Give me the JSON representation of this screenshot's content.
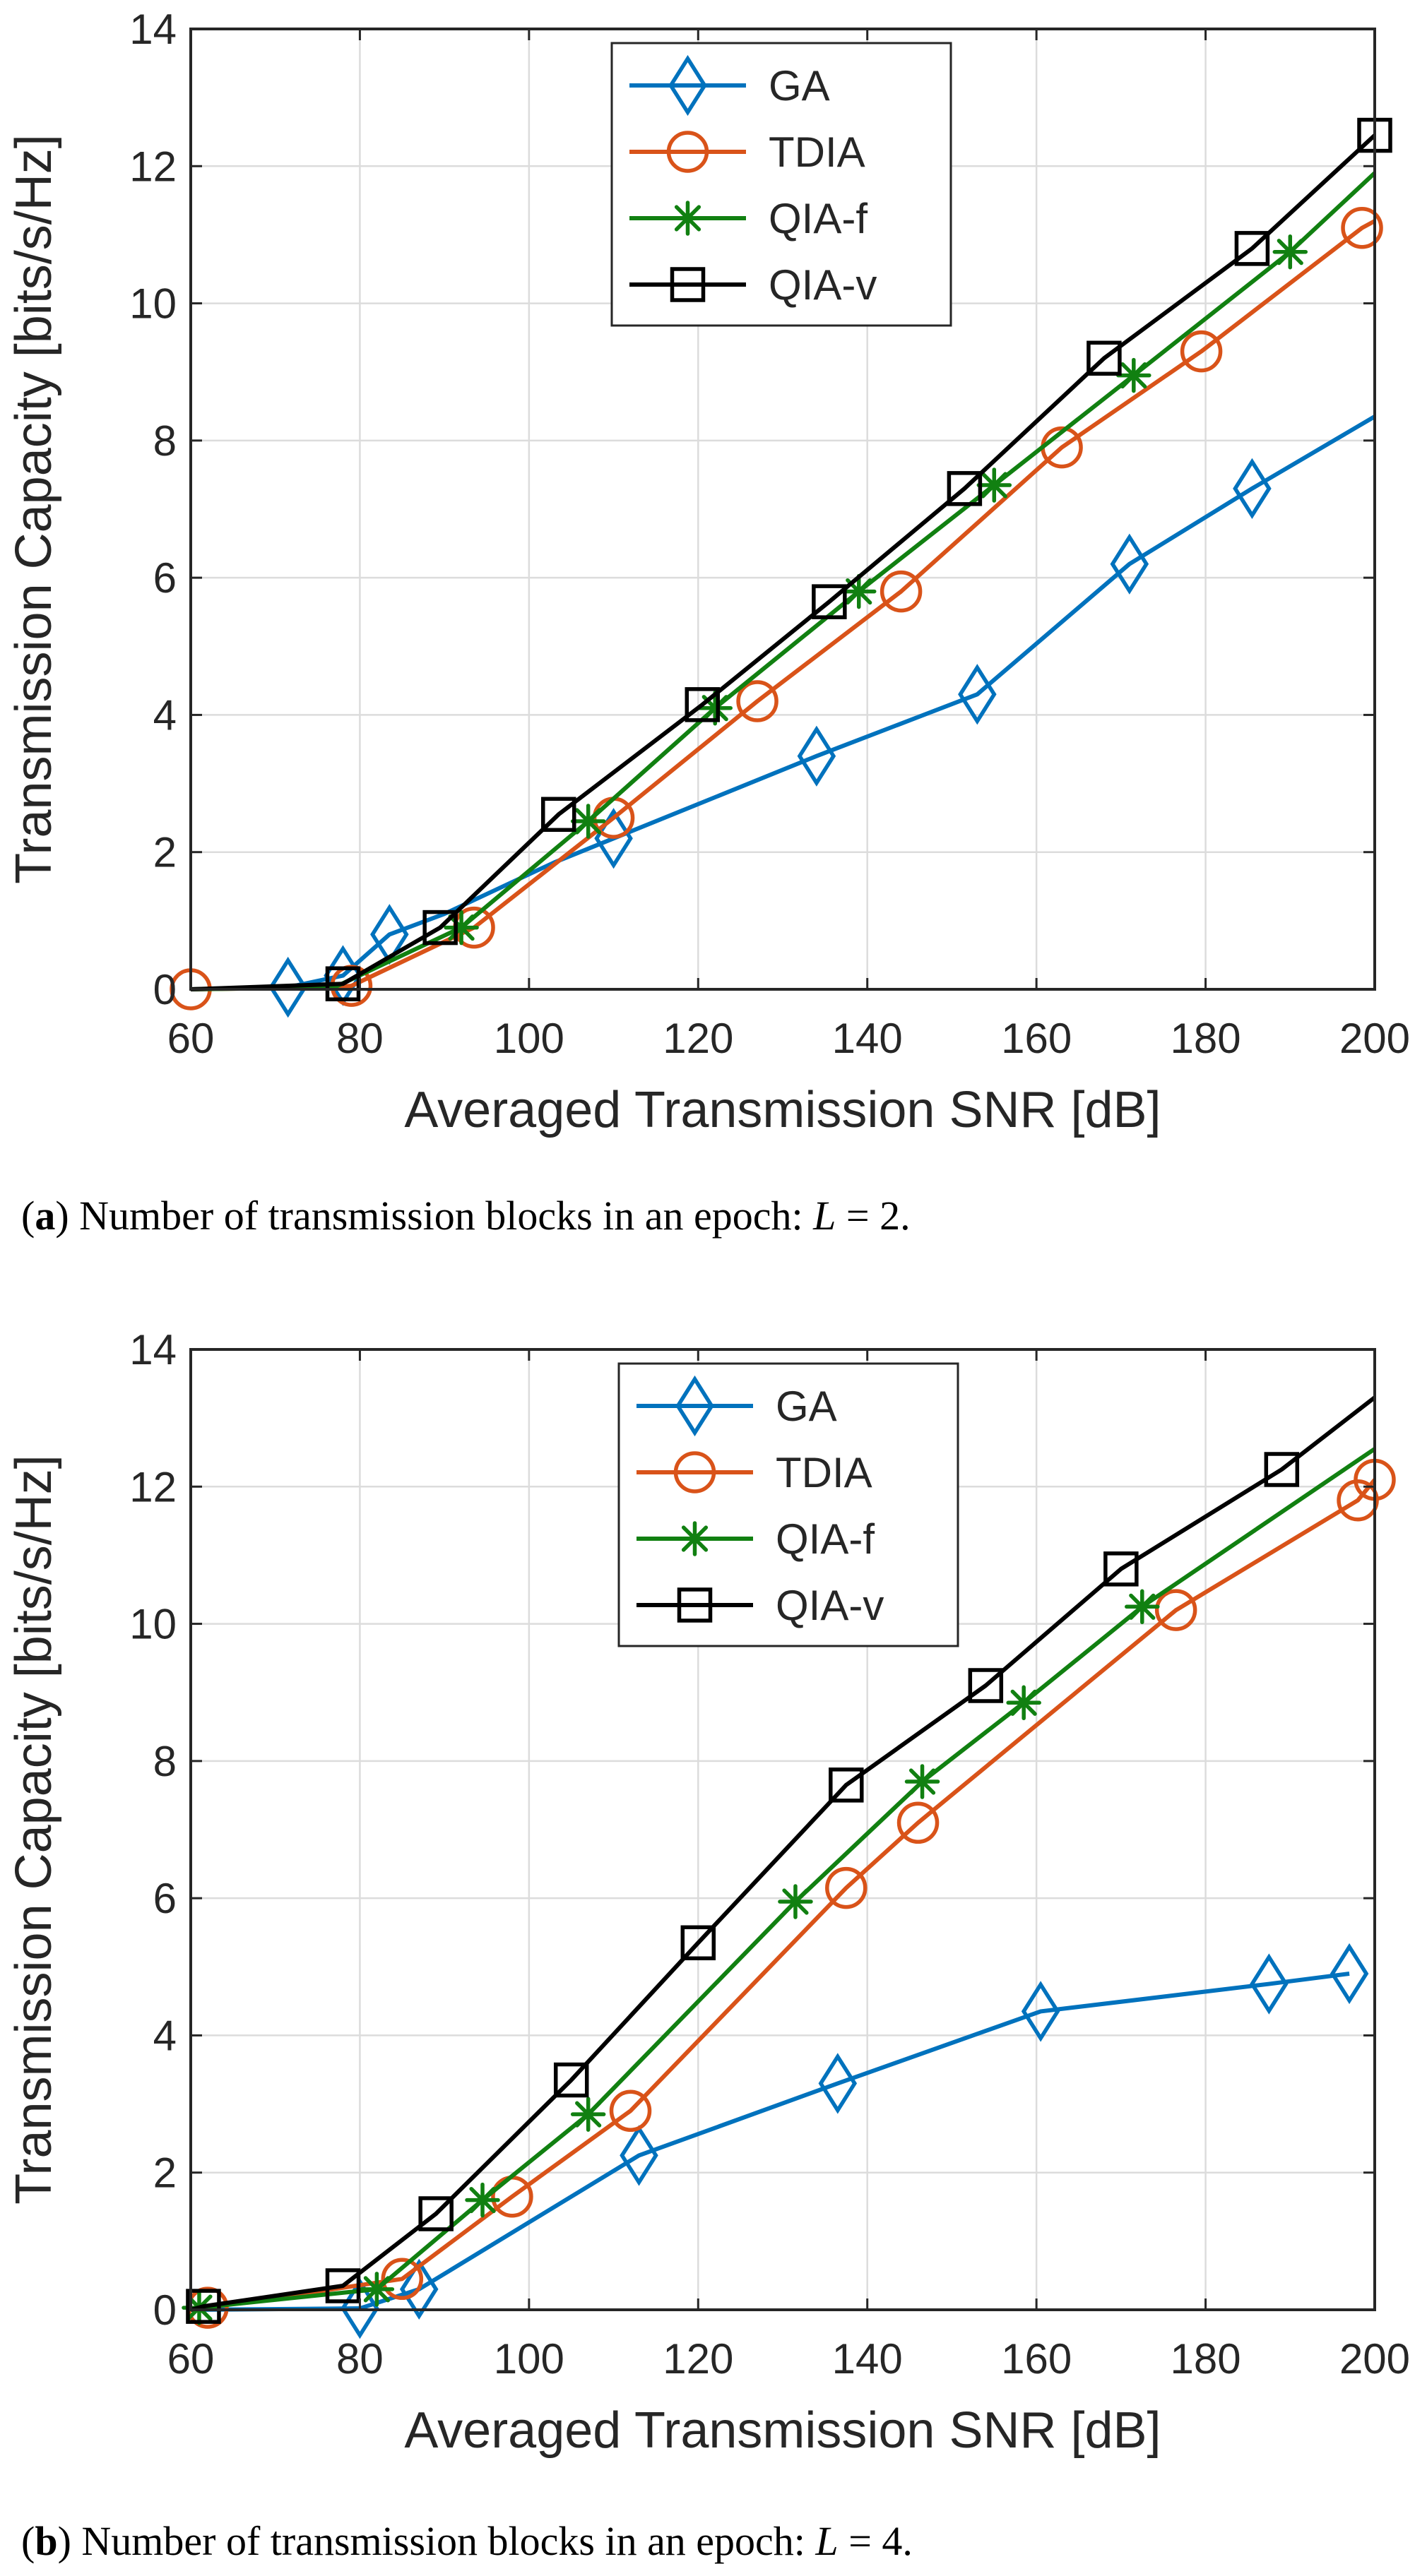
{
  "chart_data": [
    {
      "type": "line",
      "caption": {
        "label": "a",
        "text": "Number of transmission blocks in an epoch: ",
        "symbol": "L",
        "equals": " = ",
        "value": "2."
      },
      "xlabel": "Averaged Transmission SNR [dB]",
      "ylabel": "Transmission Capacity [bits/s/Hz]",
      "xlim": [
        60,
        200
      ],
      "ylim": [
        0,
        14
      ],
      "xticks": [
        60,
        80,
        100,
        120,
        140,
        160,
        180,
        200
      ],
      "yticks": [
        0,
        2,
        4,
        6,
        8,
        10,
        12,
        14
      ],
      "grid": true,
      "legend_position": "top-center",
      "series": [
        {
          "name": "GA",
          "color": "#0072BD",
          "marker": "diamond",
          "line_x": [
            60,
            71.5,
            78,
            83.5,
            90,
            103,
            110,
            134,
            153,
            171,
            185.5,
            200
          ],
          "line_y": [
            0,
            0.03,
            0.2,
            0.8,
            1.1,
            1.85,
            2.2,
            3.4,
            4.3,
            6.2,
            7.3,
            8.35
          ],
          "marker_x": [
            71.5,
            78,
            83.5,
            110,
            134,
            153,
            171,
            185.5
          ],
          "marker_y": [
            0.03,
            0.2,
            0.8,
            2.2,
            3.4,
            4.3,
            6.2,
            7.3
          ]
        },
        {
          "name": "TDIA",
          "color": "#D95319",
          "marker": "circle",
          "line_x": [
            60,
            77,
            79,
            93.5,
            110,
            127,
            144,
            163,
            179.5,
            198.5,
            200
          ],
          "line_y": [
            0,
            0.03,
            0.05,
            0.9,
            2.5,
            4.2,
            5.8,
            7.9,
            9.3,
            11.1,
            11.2
          ],
          "marker_x": [
            60,
            79,
            93.5,
            110,
            127,
            144,
            163,
            179.5,
            198.5
          ],
          "marker_y": [
            0,
            0.05,
            0.9,
            2.5,
            4.2,
            5.8,
            7.9,
            9.3,
            11.1
          ]
        },
        {
          "name": "QIA-f",
          "color": "#118011",
          "marker": "star",
          "line_x": [
            60,
            77,
            92,
            107,
            122,
            139,
            155,
            171.5,
            190,
            200
          ],
          "line_y": [
            0,
            0.03,
            0.9,
            2.45,
            4.1,
            5.8,
            7.35,
            8.95,
            10.75,
            11.9
          ],
          "marker_x": [
            92,
            107,
            122,
            139,
            155,
            171.5,
            190
          ],
          "marker_y": [
            0.9,
            2.45,
            4.1,
            5.8,
            7.35,
            8.95,
            10.75
          ]
        },
        {
          "name": "QIA-v",
          "color": "#000000",
          "marker": "square",
          "line_x": [
            60,
            78,
            89.5,
            103.5,
            120.5,
            135.5,
            151.5,
            168,
            185.5,
            200
          ],
          "line_y": [
            0,
            0.08,
            0.9,
            2.55,
            4.15,
            5.65,
            7.3,
            9.2,
            10.8,
            12.45
          ],
          "marker_x": [
            78,
            89.5,
            103.5,
            120.5,
            135.5,
            151.5,
            168,
            185.5,
            200
          ],
          "marker_y": [
            0.08,
            0.9,
            2.55,
            4.15,
            5.65,
            7.3,
            9.2,
            10.8,
            12.45
          ]
        }
      ]
    },
    {
      "type": "line",
      "caption": {
        "label": "b",
        "text": "Number of transmission blocks in an epoch: ",
        "symbol": "L",
        "equals": " = ",
        "value": "4."
      },
      "xlabel": "Averaged Transmission SNR [dB]",
      "ylabel": "Transmission Capacity [bits/s/Hz]",
      "xlim": [
        60,
        200
      ],
      "ylim": [
        0,
        14
      ],
      "xticks": [
        60,
        80,
        100,
        120,
        140,
        160,
        180,
        200
      ],
      "yticks": [
        0,
        2,
        4,
        6,
        8,
        10,
        12,
        14
      ],
      "grid": true,
      "legend_position": "top-center",
      "series": [
        {
          "name": "GA",
          "color": "#0072BD",
          "marker": "diamond",
          "line_x": [
            60,
            80,
            87,
            113,
            136.5,
            160.5,
            187.5,
            197
          ],
          "line_y": [
            0,
            0.02,
            0.3,
            2.25,
            3.3,
            4.35,
            4.75,
            4.9
          ],
          "marker_x": [
            80,
            87,
            113,
            136.5,
            160.5,
            187.5,
            197
          ],
          "marker_y": [
            0.02,
            0.3,
            2.25,
            3.3,
            4.35,
            4.75,
            4.9
          ]
        },
        {
          "name": "TDIA",
          "color": "#D95319",
          "marker": "circle",
          "line_x": [
            60,
            62,
            85,
            98,
            112,
            137.5,
            146,
            176.5,
            198,
            200
          ],
          "line_y": [
            0,
            0.03,
            0.45,
            1.65,
            2.9,
            6.15,
            7.1,
            10.2,
            11.8,
            12.1
          ],
          "marker_x": [
            62,
            85,
            98,
            112,
            137.5,
            146,
            176.5,
            198,
            200
          ],
          "marker_y": [
            0.03,
            0.45,
            1.65,
            2.9,
            6.15,
            7.1,
            10.2,
            11.8,
            12.1
          ]
        },
        {
          "name": "QIA-f",
          "color": "#118011",
          "marker": "star",
          "line_x": [
            60,
            61,
            82,
            94.5,
            107,
            131.5,
            146.5,
            158.5,
            172.5,
            200
          ],
          "line_y": [
            0,
            0.03,
            0.3,
            1.6,
            2.85,
            5.95,
            7.7,
            8.85,
            10.25,
            12.55
          ],
          "marker_x": [
            61,
            82,
            94.5,
            107,
            131.5,
            146.5,
            158.5,
            172.5
          ],
          "marker_y": [
            0.03,
            0.3,
            1.6,
            2.85,
            5.95,
            7.7,
            8.85,
            10.25
          ]
        },
        {
          "name": "QIA-v",
          "color": "#000000",
          "marker": "square",
          "line_x": [
            60,
            61.5,
            78,
            89,
            105,
            120,
            137.5,
            154,
            170,
            189,
            200
          ],
          "line_y": [
            0,
            0.05,
            0.35,
            1.4,
            3.35,
            5.35,
            7.65,
            9.1,
            10.8,
            12.25,
            13.3
          ],
          "marker_x": [
            61.5,
            78,
            89,
            105,
            120,
            137.5,
            154,
            170,
            189
          ],
          "marker_y": [
            0.05,
            0.35,
            1.4,
            3.35,
            5.35,
            7.65,
            9.1,
            10.8,
            12.25
          ]
        }
      ]
    }
  ]
}
